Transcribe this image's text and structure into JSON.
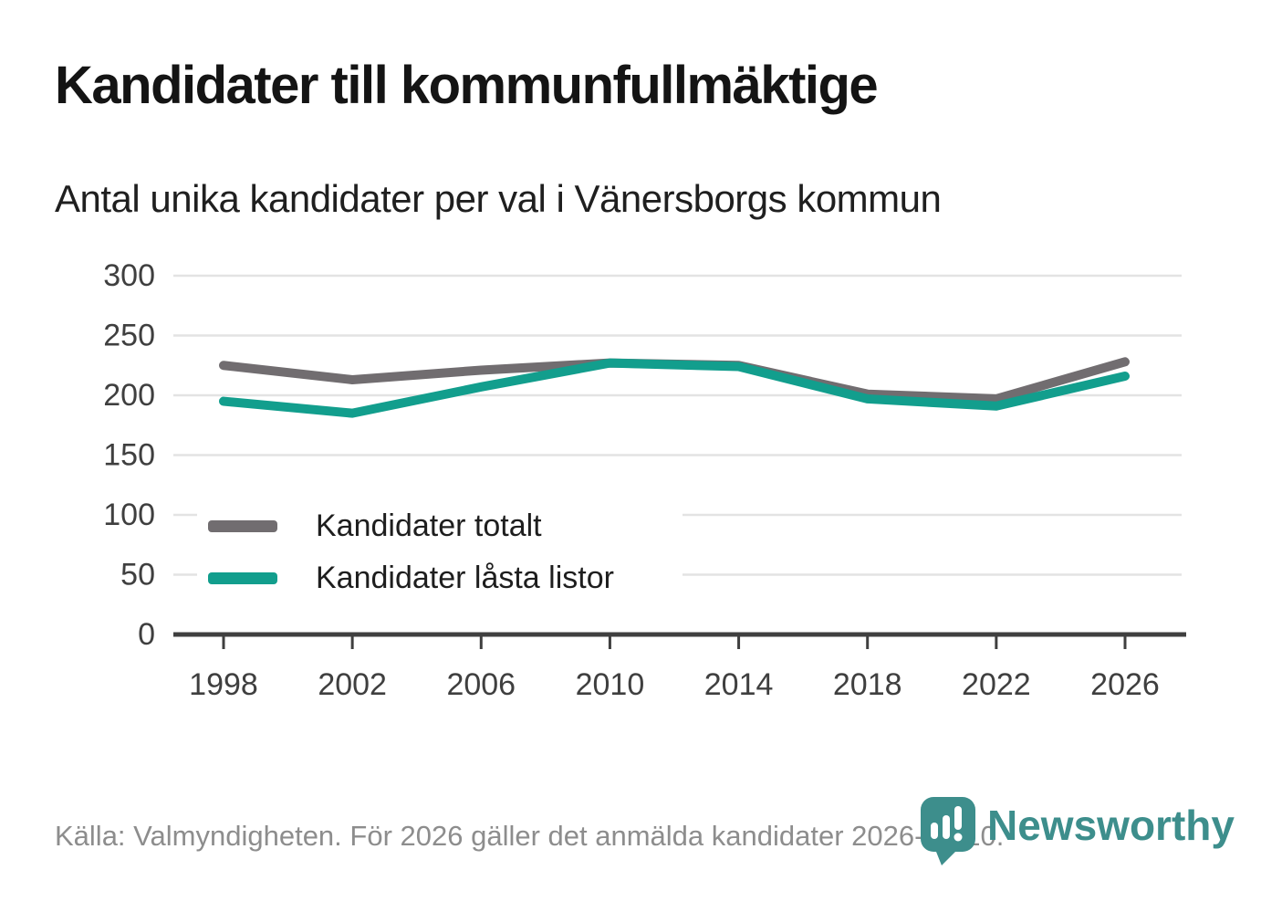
{
  "header": {
    "title": "Kandidater till kommunfullmäktige",
    "subtitle": "Antal unika kandidater per val i Vänersborgs kommun"
  },
  "chart_data": {
    "type": "line",
    "categories": [
      "1998",
      "2002",
      "2006",
      "2010",
      "2014",
      "2018",
      "2022",
      "2026"
    ],
    "series": [
      {
        "name": "Kandidater totalt",
        "color": "#716d70",
        "values": [
          225,
          213,
          221,
          227,
          225,
          201,
          197,
          228
        ]
      },
      {
        "name": "Kandidater låsta listor",
        "color": "#129e8d",
        "values": [
          195,
          185,
          207,
          227,
          224,
          197,
          191,
          216
        ]
      }
    ],
    "title": "Kandidater till kommunfullmäktige",
    "subtitle": "Antal unika kandidater per val i Vänersborgs kommun",
    "xlabel": "",
    "ylabel": "",
    "ylim": [
      0,
      300
    ],
    "yticks": [
      0,
      50,
      100,
      150,
      200,
      250,
      300
    ],
    "grid": true,
    "legend_position": "inside-bottom-left"
  },
  "footer": {
    "source": "Källa: Valmyndigheten. För 2026 gäller det anmälda kandidater 2026-04-10.",
    "brand": "Newsworthy",
    "brand_color": "#3d8e8c"
  },
  "style": {
    "grid_color": "#e3e3e3",
    "axis_color": "#3f3f3f",
    "background": "#ffffff"
  }
}
